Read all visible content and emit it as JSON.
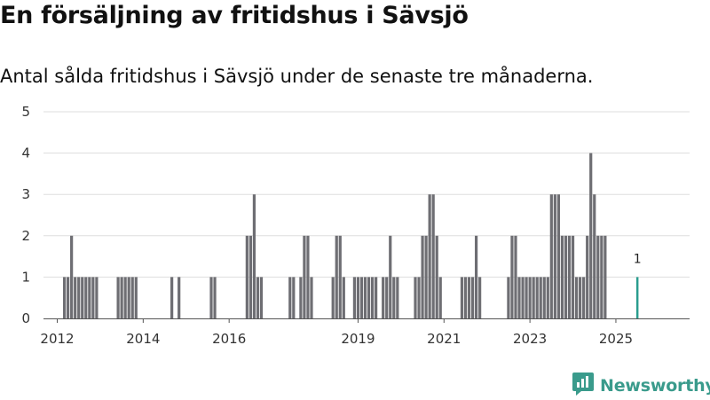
{
  "header": {
    "title": "En försäljning av fritidshus i Sävsjö",
    "subtitle": "Antal sålda fritidshus i Sävsjö under de senaste tre månaderna."
  },
  "brand": {
    "name": "Newsworthy",
    "icon": "bar-chart-speech-bubble-icon"
  },
  "colors": {
    "bar": "#6e6e73",
    "highlight": "#2a9d8f",
    "grid": "#dddddd",
    "brand": "#3a9b8c"
  },
  "chart_data": {
    "type": "bar",
    "title": "En försäljning av fritidshus i Sävsjö",
    "subtitle": "Antal sålda fritidshus i Sävsjö under de senaste tre månaderna.",
    "ylim": [
      0,
      5
    ],
    "yticks": [
      "0",
      "1",
      "2",
      "3",
      "4",
      "5"
    ],
    "xticks": [
      "2012",
      "2014",
      "2016",
      "2019",
      "2021",
      "2023",
      "2025"
    ],
    "xtick_dates": [
      "2012-01",
      "2014-01",
      "2016-01",
      "2019-01",
      "2021-01",
      "2023-01",
      "2025-01"
    ],
    "xlim": [
      "2011-01",
      "2026-01"
    ],
    "grid": true,
    "highlight_label": "1",
    "highlight_date": "2025-07",
    "series": [
      {
        "dates": [
          "2012-03",
          "2012-04",
          "2012-05",
          "2012-06",
          "2012-07",
          "2012-08",
          "2012-09",
          "2012-10",
          "2012-11",
          "2012-12",
          "2013-06",
          "2013-07",
          "2013-08",
          "2013-09",
          "2013-10",
          "2013-11",
          "2014-09",
          "2014-11",
          "2015-08",
          "2015-09",
          "2016-06",
          "2016-07",
          "2016-08",
          "2016-09",
          "2016-10",
          "2017-06",
          "2017-07",
          "2017-09",
          "2017-10",
          "2017-11",
          "2017-12",
          "2018-06",
          "2018-07",
          "2018-08",
          "2018-09",
          "2018-12",
          "2019-01",
          "2019-02",
          "2019-03",
          "2019-04",
          "2019-05",
          "2019-06",
          "2019-08",
          "2019-09",
          "2019-10",
          "2019-11",
          "2019-12",
          "2020-05",
          "2020-06",
          "2020-07",
          "2020-08",
          "2020-09",
          "2020-10",
          "2020-11",
          "2020-12",
          "2021-06",
          "2021-07",
          "2021-08",
          "2021-09",
          "2021-10",
          "2021-11",
          "2022-07",
          "2022-08",
          "2022-09",
          "2022-10",
          "2022-11",
          "2022-12",
          "2023-01",
          "2023-02",
          "2023-03",
          "2023-04",
          "2023-05",
          "2023-06",
          "2023-07",
          "2023-08",
          "2023-09",
          "2023-10",
          "2023-11",
          "2023-12",
          "2024-01",
          "2024-02",
          "2024-03",
          "2024-04",
          "2024-05",
          "2024-06",
          "2024-07",
          "2024-08",
          "2024-09",
          "2024-10"
        ],
        "values": [
          1,
          1,
          2,
          1,
          1,
          1,
          1,
          1,
          1,
          1,
          1,
          1,
          1,
          1,
          1,
          1,
          1,
          1,
          1,
          1,
          2,
          2,
          3,
          1,
          1,
          1,
          1,
          1,
          2,
          2,
          1,
          1,
          2,
          2,
          1,
          1,
          1,
          1,
          1,
          1,
          1,
          1,
          1,
          1,
          2,
          1,
          1,
          1,
          1,
          2,
          2,
          3,
          3,
          2,
          1,
          1,
          1,
          1,
          1,
          2,
          1,
          1,
          2,
          2,
          1,
          1,
          1,
          1,
          1,
          1,
          1,
          1,
          1,
          3,
          3,
          3,
          2,
          2,
          2,
          2,
          1,
          1,
          1,
          2,
          4,
          3,
          2,
          2,
          2
        ]
      }
    ]
  }
}
